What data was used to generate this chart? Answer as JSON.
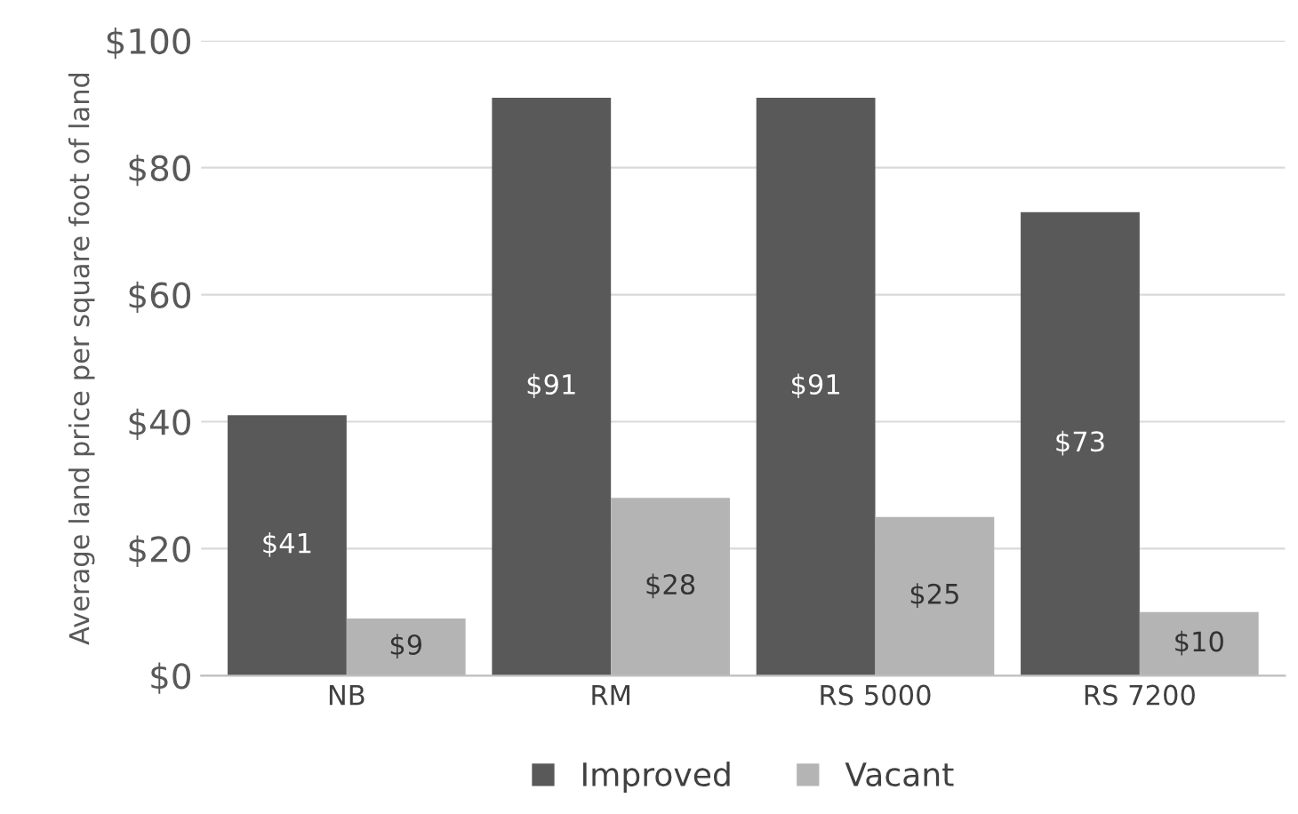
{
  "chart_data": {
    "type": "bar",
    "ylabel": "Average land price per square foot of land",
    "categories": [
      "NB",
      "RM",
      "RS 5000",
      "RS 7200"
    ],
    "series": [
      {
        "name": "Improved",
        "color": "#595959",
        "values": [
          41,
          91,
          91,
          73
        ],
        "value_labels": [
          "$41",
          "$91",
          "$91",
          "$73"
        ]
      },
      {
        "name": "Vacant",
        "color": "#b4b4b4",
        "values": [
          9,
          28,
          25,
          10
        ],
        "value_labels": [
          "$9",
          "$28",
          "$25",
          "$10"
        ]
      }
    ],
    "ylim": [
      0,
      100
    ],
    "yticks": [
      {
        "value": 0,
        "label": "$0"
      },
      {
        "value": 20,
        "label": "$20"
      },
      {
        "value": 40,
        "label": "$40"
      },
      {
        "value": 60,
        "label": "$60"
      },
      {
        "value": 80,
        "label": "$80"
      },
      {
        "value": 100,
        "label": "$100"
      }
    ],
    "grid": "y",
    "legend": "bottom"
  }
}
